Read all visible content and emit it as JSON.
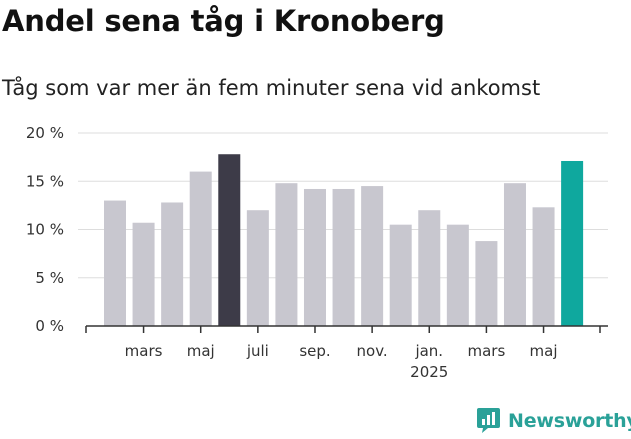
{
  "title": "Andel sena tåg i Kronoberg",
  "subtitle": "Tåg som var mer än fem minuter sena vid ankomst",
  "brand": {
    "name": "Newsworthy",
    "color": "#2aa198"
  },
  "colors": {
    "default": "#c8c7cf",
    "dark": "#3d3b48",
    "accent": "#0fa89e",
    "grid": "#dddddd",
    "axis": "#333333"
  },
  "chart_data": {
    "type": "bar",
    "title": "Andel sena tåg i Kronoberg",
    "subtitle": "Tåg som var mer än fem minuter sena vid ankomst",
    "xlabel": "",
    "ylabel": "",
    "ylim": [
      0,
      20
    ],
    "grid": true,
    "yticks": [
      {
        "value": 0,
        "label": "0 %"
      },
      {
        "value": 5,
        "label": "5 %"
      },
      {
        "value": 10,
        "label": "10 %"
      },
      {
        "value": 15,
        "label": "15 %"
      },
      {
        "value": 20,
        "label": "20 %"
      }
    ],
    "categories": [
      "2024-02",
      "2024-03",
      "2024-04",
      "2024-05",
      "2024-06",
      "2024-07",
      "2024-08",
      "2024-09",
      "2024-10",
      "2024-11",
      "2024-12",
      "2025-01",
      "2025-02",
      "2025-03",
      "2025-04",
      "2025-05",
      "2025-06"
    ],
    "values": [
      13.0,
      10.7,
      12.8,
      16.0,
      17.8,
      12.0,
      14.8,
      14.2,
      14.2,
      14.5,
      10.5,
      12.0,
      10.5,
      8.8,
      14.8,
      12.3,
      17.1
    ],
    "highlight": {
      "4": "dark",
      "16": "accent"
    },
    "xticks": [
      {
        "index": 1,
        "label": "mars"
      },
      {
        "index": 3,
        "label": "maj"
      },
      {
        "index": 5,
        "label": "juli"
      },
      {
        "index": 7,
        "label": "sep."
      },
      {
        "index": 9,
        "label": "nov."
      },
      {
        "index": 11,
        "label": "jan.",
        "sublabel": "2025"
      },
      {
        "index": 13,
        "label": "mars"
      },
      {
        "index": 15,
        "label": "maj"
      }
    ]
  }
}
